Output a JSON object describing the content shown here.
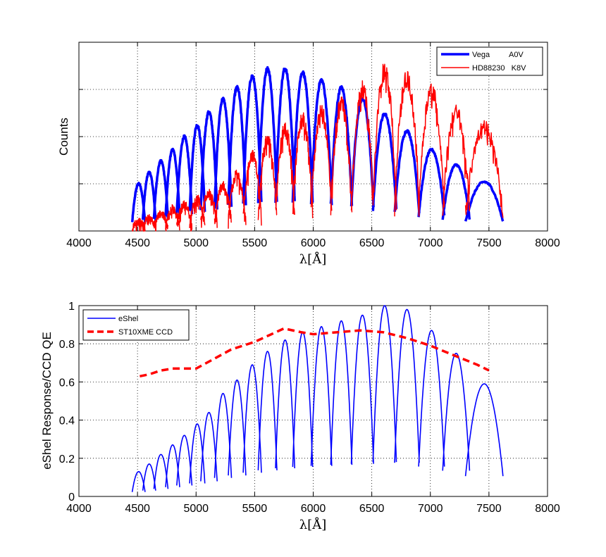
{
  "chart_data": [
    {
      "type": "line",
      "name": "spectra",
      "title": "",
      "xlabel": "λ[Å]",
      "ylabel": "Counts",
      "xlim": [
        4000,
        8000
      ],
      "ylim": [
        0,
        1
      ],
      "xticks": [
        4000,
        4500,
        5000,
        5500,
        6000,
        6500,
        7000,
        7500,
        8000
      ],
      "xtick_labels": [
        "4000",
        "4500",
        "5000",
        "5500",
        "6000",
        "6500",
        "7000",
        "7500",
        "8000"
      ],
      "yticks": [
        0.25,
        0.5,
        0.75
      ],
      "grid": true,
      "legend_position": "top-right",
      "orders": {
        "centers": [
          4510,
          4600,
          4700,
          4800,
          4900,
          5010,
          5110,
          5230,
          5350,
          5480,
          5610,
          5760,
          5910,
          6070,
          6240,
          6420,
          6610,
          6800,
          7010,
          7220,
          7460
        ],
        "half_widths": [
          55,
          55,
          60,
          60,
          65,
          65,
          70,
          72,
          75,
          78,
          80,
          82,
          85,
          88,
          90,
          95,
          100,
          105,
          110,
          115,
          160
        ]
      },
      "series": [
        {
          "name": "Vega",
          "label": "Vega         A0V",
          "color": "#0000ff",
          "line_width": 3.5,
          "order_peaks": [
            0.25,
            0.31,
            0.37,
            0.43,
            0.5,
            0.56,
            0.63,
            0.7,
            0.76,
            0.82,
            0.86,
            0.86,
            0.84,
            0.8,
            0.76,
            0.7,
            0.62,
            0.53,
            0.43,
            0.35,
            0.26
          ]
        },
        {
          "name": "HD88230",
          "label": "HD88230   K8V",
          "color": "#ff0000",
          "line_width": 1.5,
          "order_peaks": [
            0.05,
            0.07,
            0.09,
            0.12,
            0.14,
            0.17,
            0.2,
            0.24,
            0.3,
            0.4,
            0.48,
            0.54,
            0.59,
            0.63,
            0.68,
            0.75,
            0.85,
            0.81,
            0.75,
            0.63,
            0.55
          ]
        }
      ]
    },
    {
      "type": "line",
      "name": "response",
      "title": "",
      "xlabel": "λ[Å]",
      "ylabel": "eShel Response/CCD QE",
      "xlim": [
        4000,
        8000
      ],
      "ylim": [
        0,
        1
      ],
      "xticks": [
        4000,
        4500,
        5000,
        5500,
        6000,
        6500,
        7000,
        7500,
        8000
      ],
      "xtick_labels": [
        "4000",
        "4500",
        "5000",
        "5500",
        "6000",
        "6500",
        "7000",
        "7500",
        "8000"
      ],
      "yticks": [
        0,
        0.2,
        0.4,
        0.6,
        0.8,
        1
      ],
      "ytick_labels": [
        "0",
        "0.2",
        "0.4",
        "0.6",
        "0.8",
        "1"
      ],
      "grid": true,
      "legend_position": "top-left",
      "series": [
        {
          "name": "eShel",
          "label": "eShel",
          "color": "#0000ff",
          "line_width": 1.6,
          "order_centers": [
            4510,
            4600,
            4700,
            4800,
            4900,
            5010,
            5110,
            5230,
            5350,
            5480,
            5610,
            5760,
            5910,
            6070,
            6240,
            6420,
            6610,
            6800,
            7010,
            7220,
            7460
          ],
          "order_half_widths": [
            55,
            55,
            60,
            60,
            65,
            65,
            70,
            72,
            75,
            78,
            80,
            82,
            85,
            88,
            90,
            95,
            100,
            105,
            110,
            115,
            160
          ],
          "order_peaks": [
            0.13,
            0.17,
            0.22,
            0.27,
            0.32,
            0.38,
            0.44,
            0.54,
            0.61,
            0.69,
            0.76,
            0.82,
            0.86,
            0.89,
            0.92,
            0.95,
            1.0,
            0.98,
            0.87,
            0.75,
            0.59
          ]
        },
        {
          "name": "ST10XME CCD",
          "label": "ST10XME CCD",
          "color": "#ff0000",
          "line_width": 3.5,
          "dashed": true,
          "x": [
            4520,
            4600,
            4700,
            4800,
            5000,
            5150,
            5300,
            5500,
            5750,
            5900,
            6000,
            6200,
            6400,
            6600,
            6800,
            7000,
            7200,
            7400,
            7500
          ],
          "y": [
            0.63,
            0.64,
            0.66,
            0.67,
            0.67,
            0.72,
            0.77,
            0.81,
            0.88,
            0.86,
            0.85,
            0.86,
            0.87,
            0.86,
            0.83,
            0.79,
            0.74,
            0.69,
            0.66
          ]
        }
      ]
    }
  ]
}
